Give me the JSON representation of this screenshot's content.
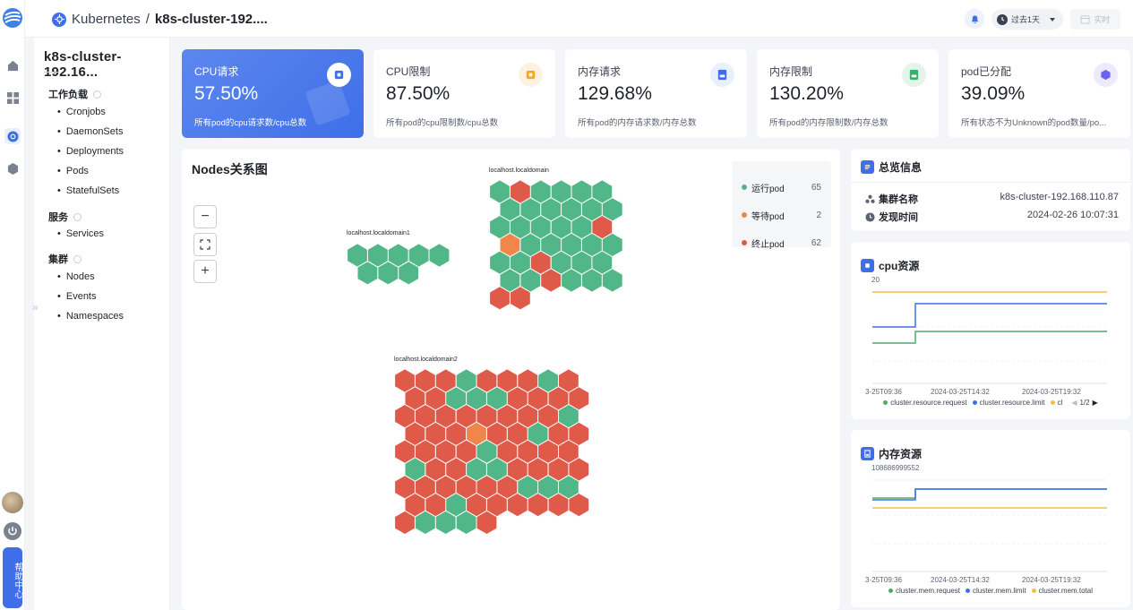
{
  "topbar": {
    "breadcrumb_root": "Kubernetes",
    "breadcrumb_sep": "/",
    "breadcrumb_current": "k8s-cluster-192....",
    "time_range": "过去1天",
    "realtime_label": "实时"
  },
  "rail": {
    "help_label": "帮助中心"
  },
  "sidenav": {
    "cluster_title": "k8s-cluster-192.16...",
    "sections": [
      {
        "label": "工作负载",
        "items": [
          "Cronjobs",
          "DaemonSets",
          "Deployments",
          "Pods",
          "StatefulSets"
        ]
      },
      {
        "label": "服务",
        "items": [
          "Services"
        ]
      },
      {
        "label": "集群",
        "items": [
          "Nodes",
          "Events",
          "Namespaces"
        ]
      }
    ]
  },
  "cards": [
    {
      "title": "CPU请求",
      "value": "57.50%",
      "desc": "所有pod的cpu请求数/cpu总数",
      "icon": "cpu-icon",
      "color": "#3f6fe8"
    },
    {
      "title": "CPU限制",
      "value": "87.50%",
      "desc": "所有pod的cpu限制数/cpu总数",
      "icon": "cpu-icon",
      "color": "#f5a623"
    },
    {
      "title": "内存请求",
      "value": "129.68%",
      "desc": "所有pod的内存请求数/内存总数",
      "icon": "memory-icon",
      "color": "#3f6fe8"
    },
    {
      "title": "内存限制",
      "value": "130.20%",
      "desc": "所有pod的内存限制数/内存总数",
      "icon": "memory-icon",
      "color": "#3cae6b"
    },
    {
      "title": "pod已分配",
      "value": "39.09%",
      "desc": "所有状态不为Unknown的pod数量/po...",
      "icon": "pod-icon",
      "color": "#6b63f0"
    }
  ],
  "nodes_panel": {
    "title": "Nodes关系图",
    "legend": [
      {
        "label": "运行pod",
        "count": "65",
        "color": "#52b788"
      },
      {
        "label": "等待pod",
        "count": "2",
        "color": "#f0864a"
      },
      {
        "label": "终止pod",
        "count": "62",
        "color": "#e05a4a"
      }
    ],
    "nodes": [
      {
        "name": "localhost.localdomain1"
      },
      {
        "name": "localhost.localdomain"
      },
      {
        "name": "localhost.localdomain2"
      }
    ],
    "colors": {
      "running": "#52b788",
      "pending": "#f0864a",
      "terminated": "#e05a4a"
    }
  },
  "overview": {
    "title": "总览信息",
    "cluster_name_label": "集群名称",
    "cluster_name": "k8s-cluster-192.168.110.87",
    "discover_time_label": "发现时间",
    "discover_time": "2024-02-26 10:07:31"
  },
  "cpu_panel": {
    "title": "cpu资源",
    "ymax_label": "20",
    "x_ticks": [
      "3-25T09:36",
      "2024-03-25T14:32",
      "2024-03-25T19:32"
    ],
    "legend": [
      {
        "name": "cluster.resource.request",
        "color": "#52a868"
      },
      {
        "name": "cluster.resource.limit",
        "color": "#3f6fe8"
      },
      {
        "name": "cl",
        "color": "#f0c040"
      }
    ],
    "pager": "1/2"
  },
  "mem_panel": {
    "title": "内存资源",
    "ymax_label": "108686999552",
    "x_ticks": [
      "3-25T09:36",
      "2024-03-25T14:32",
      "2024-03-25T19:32"
    ],
    "legend": [
      {
        "name": "cluster.mem.request",
        "color": "#52a868"
      },
      {
        "name": "cluster.mem.limit",
        "color": "#3f6fe8"
      },
      {
        "name": "cluster.mem.total",
        "color": "#f0c040"
      }
    ]
  }
}
